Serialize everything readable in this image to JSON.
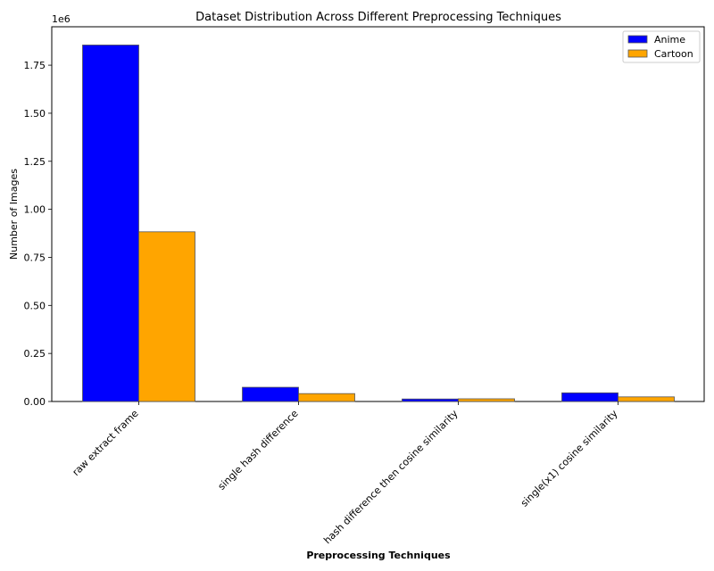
{
  "chart_data": {
    "type": "bar",
    "title": "Dataset Distribution Across Different Preprocessing Techniques",
    "xlabel": "Preprocessing Techniques",
    "ylabel": "Number of Images",
    "y_offset_label": "1e6",
    "categories": [
      "raw extract frame",
      "single hash difference",
      "hash difference then cosine similarity",
      "single(x1) cosine similarity"
    ],
    "series": [
      {
        "name": "Anime",
        "color": "#0000ff",
        "values": [
          1855000,
          74000,
          13000,
          45000
        ]
      },
      {
        "name": "Cartoon",
        "color": "#ffa500",
        "values": [
          883000,
          41000,
          14000,
          24000
        ]
      }
    ],
    "ylim": [
      0,
      1950000
    ],
    "yticks": [
      0,
      250000,
      500000,
      750000,
      1000000,
      1250000,
      1500000,
      1750000
    ],
    "ytick_labels": [
      "0.00",
      "0.25",
      "0.50",
      "0.75",
      "1.00",
      "1.25",
      "1.50",
      "1.75"
    ],
    "legend_position": "top-right",
    "grid": false
  }
}
